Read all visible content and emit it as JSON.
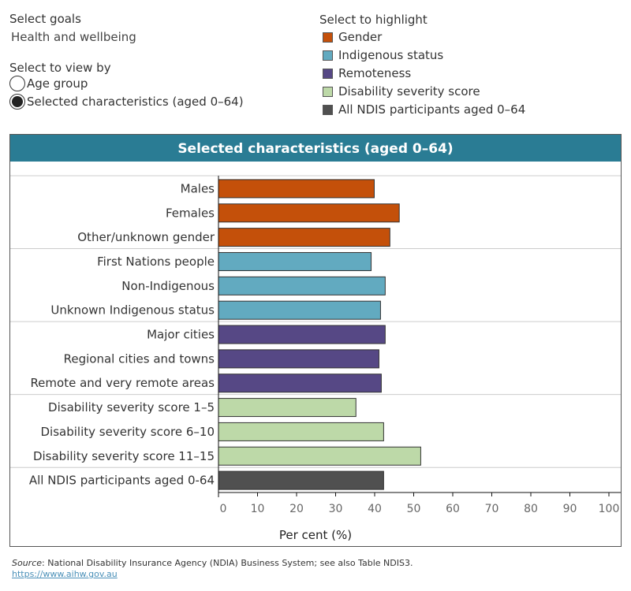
{
  "controls": {
    "goals_label": "Select goals",
    "goals_value": "Health and wellbeing",
    "view_label": "Select to view by",
    "view_options": [
      {
        "label": "Age group",
        "selected": false
      },
      {
        "label": "Selected characteristics (aged 0–64)",
        "selected": true
      }
    ],
    "highlight_label": "Select to highlight",
    "highlight_items": [
      {
        "label": "Gender",
        "color": "#c4500a"
      },
      {
        "label": "Indigenous status",
        "color": "#62aac0"
      },
      {
        "label": "Remoteness",
        "color": "#564885"
      },
      {
        "label": "Disability severity score",
        "color": "#bdd9a8"
      },
      {
        "label": "All NDIS participants aged 0–64",
        "color": "#505050"
      }
    ]
  },
  "chart_title": "Selected characteristics (aged 0–64)",
  "chart_data": {
    "type": "bar",
    "orientation": "horizontal",
    "categories": [
      "Males",
      "Females",
      "Other/unknown gender",
      "First Nations people",
      "Non-Indigenous",
      "Unknown Indigenous status",
      "Major cities",
      "Regional cities and towns",
      "Remote and very remote areas",
      "Disability severity score 1–5",
      "Disability severity score 6–10",
      "Disability severity score 11–15",
      "All NDIS participants aged 0-64"
    ],
    "groups": [
      "Gender",
      "Gender",
      "Gender",
      "Indigenous status",
      "Indigenous status",
      "Indigenous status",
      "Remoteness",
      "Remoteness",
      "Remoteness",
      "Disability severity score",
      "Disability severity score",
      "Disability severity score",
      "All NDIS participants aged 0–64"
    ],
    "values": [
      39.9,
      46.3,
      43.9,
      39.1,
      42.7,
      41.5,
      42.7,
      41.1,
      41.7,
      35.2,
      42.3,
      51.8,
      42.3
    ],
    "xlabel": "Per cent (%)",
    "xlim": [
      0,
      100
    ],
    "xticks": [
      "0",
      "10",
      "20",
      "30",
      "40",
      "50",
      "60",
      "70",
      "80",
      "90",
      "100"
    ],
    "grid": false
  },
  "footer": {
    "source_label": "Source",
    "source_text": ": National Disability Insurance Agency (NDIA) Business System; see also Table NDIS3.",
    "link": "https://www.aihw.gov.au"
  }
}
